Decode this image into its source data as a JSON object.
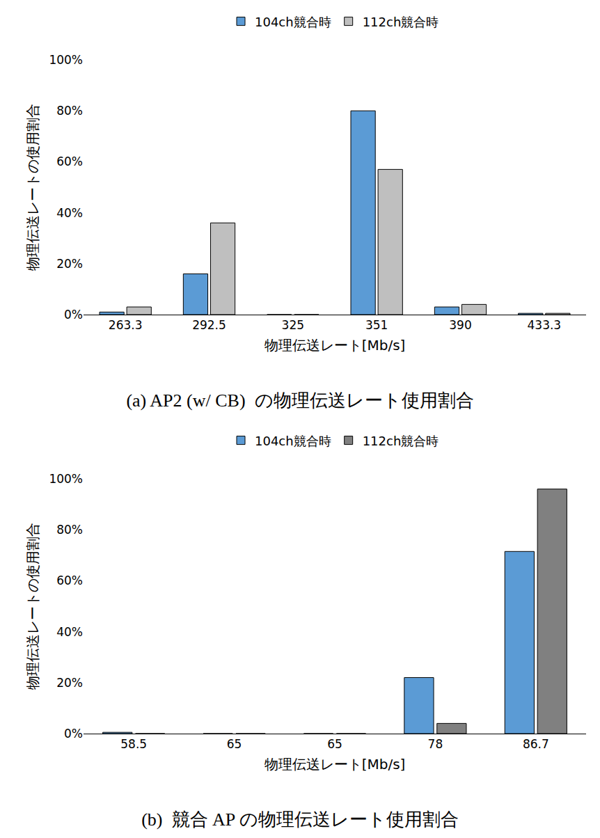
{
  "chart_data": [
    {
      "type": "bar",
      "title": "(a) AP2 (w/ CB)  の物理伝送レート使用割合",
      "x_label": "物理伝送レート[Mb/s]",
      "y_label": "物理伝送レートの使用割合",
      "categories": [
        "263.3",
        "292.5",
        "325",
        "351",
        "390",
        "433.3"
      ],
      "series": [
        {
          "name": "104ch競合時",
          "color": "#5b9bd5",
          "values": [
            1,
            16,
            0,
            80,
            3,
            0.5
          ]
        },
        {
          "name": "112ch競合時",
          "color": "#bfbfbf",
          "values": [
            3,
            36,
            0,
            57,
            4,
            0.5
          ]
        }
      ],
      "ylim": [
        0,
        100
      ],
      "yticks": [
        {
          "value": 0,
          "label": "0%"
        },
        {
          "value": 20,
          "label": "20%"
        },
        {
          "value": 40,
          "label": "40%"
        },
        {
          "value": 60,
          "label": "60%"
        },
        {
          "value": 80,
          "label": "80%"
        },
        {
          "value": 100,
          "label": "100%"
        }
      ],
      "grid": false,
      "legend": "top"
    },
    {
      "type": "bar",
      "title": "(b)  競合 AP の物理伝送レート使用割合",
      "x_label": "物理伝送レート[Mb/s]",
      "y_label": "物理伝送レートの使用割合",
      "categories": [
        "58.5",
        "65",
        "65",
        "78",
        "86.7"
      ],
      "series": [
        {
          "name": "104ch競合時",
          "color": "#5b9bd5",
          "values": [
            0.5,
            0,
            0,
            22,
            71.5
          ]
        },
        {
          "name": "112ch競合時",
          "color": "#808080",
          "values": [
            0,
            0,
            0,
            4,
            96
          ]
        }
      ],
      "ylim": [
        0,
        100
      ],
      "yticks": [
        {
          "value": 0,
          "label": "0%"
        },
        {
          "value": 20,
          "label": "20%"
        },
        {
          "value": 40,
          "label": "40%"
        },
        {
          "value": 60,
          "label": "60%"
        },
        {
          "value": 80,
          "label": "80%"
        },
        {
          "value": 100,
          "label": "100%"
        }
      ],
      "grid": false,
      "legend": "top"
    }
  ]
}
